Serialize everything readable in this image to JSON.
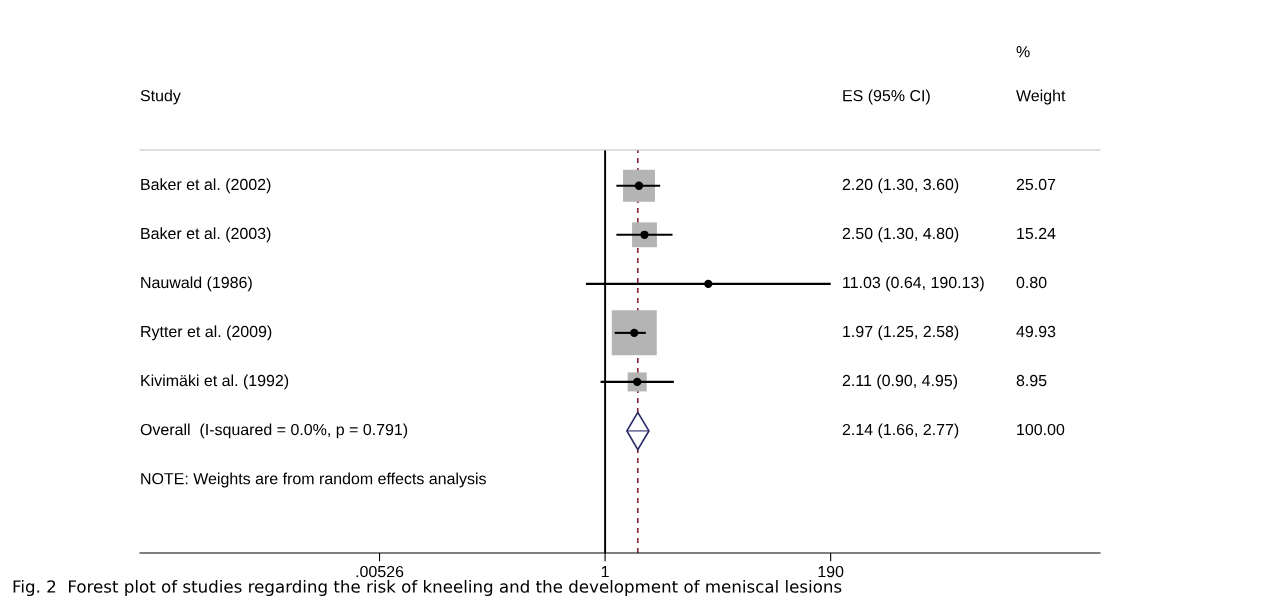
{
  "chart_data": {
    "type": "scatter",
    "orientation": "horizontal",
    "log": "x",
    "categories": [
      "Baker et al. (2002)",
      "Baker et al. (2003)",
      "Nauwald (1986)",
      "Rytter et al. (2009)",
      "Kivimäki et al. (1992)",
      "Overall  (I-squared = 0.0%, p = 0.791)"
    ],
    "series": [
      {
        "color": "#000000",
        "marker": "circle",
        "values": [
          2.2,
          2.5,
          11.03,
          1.97,
          2.11,
          null
        ],
        "errors": [
          [
            1.3,
            3.6
          ],
          [
            1.3,
            4.8
          ],
          [
            0.64,
            190.13
          ],
          [
            1.25,
            2.58
          ],
          [
            0.9,
            4.95
          ],
          null
        ]
      },
      {
        "color": "#2b2b6b",
        "marker": "diamond",
        "values": [
          null,
          null,
          null,
          null,
          null,
          2.14
        ],
        "errors": [
          null,
          null,
          null,
          null,
          null,
          [
            1.66,
            2.77
          ]
        ]
      }
    ],
    "xlim": [
      2e-05,
      100000
    ],
    "xticks": [
      {
        "value": 0.00526,
        "label": ".00526"
      },
      1,
      190
    ],
    "ref_lines": [
      {
        "axis": "x",
        "value": 1,
        "color": "#000000",
        "line_style": "solid"
      },
      {
        "axis": "x",
        "value": 2.14,
        "color": "#8b2a3a",
        "line_style": "dashed"
      }
    ],
    "grid": false,
    "annotations": [
      "Study",
      "ES (95% CI)",
      "%",
      "Weight",
      "2.20 (1.30, 3.60)",
      "2.50 (1.30, 4.80)",
      "11.03 (0.64, 190.13)",
      "1.97 (1.25, 2.58)",
      "2.11 (0.90, 4.95)",
      "2.14 (1.66, 2.77)",
      "25.07",
      "15.24",
      "0.80",
      "49.93",
      "8.95",
      "100.00",
      "NOTE: Weights are from random effects analysis",
      "Fig. 2  Forest plot of studies regarding the risk of kneeling and the development of meniscal lesions"
    ]
  }
}
